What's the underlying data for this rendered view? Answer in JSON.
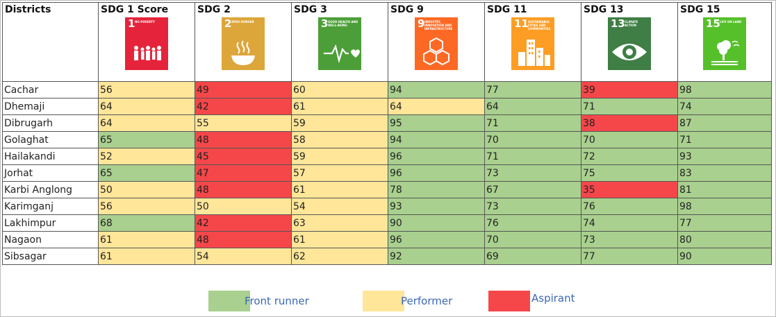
{
  "header": {
    "districts": "Districts",
    "sdg1": "SDG 1 Score",
    "sdg2": "SDG 2",
    "sdg3": "SDG 3",
    "sdg9": "SDG 9",
    "sdg11": "SDG 11",
    "sdg13": "SDG 13",
    "sdg15": "SDG 15"
  },
  "tiles": [
    {
      "num": "1",
      "label": "No poverty",
      "color": "#e5243b"
    },
    {
      "num": "2",
      "label": "Zero hunger",
      "color": "#dda63a"
    },
    {
      "num": "3",
      "label": "Good health and well-being",
      "color": "#4c9f38"
    },
    {
      "num": "9",
      "label": "Industry, innovation and infrastructure",
      "color": "#fd6925"
    },
    {
      "num": "11",
      "label": "Sustainable cities and communities",
      "color": "#fd9d24"
    },
    {
      "num": "13",
      "label": "Climate action",
      "color": "#3f7e44"
    },
    {
      "num": "15",
      "label": "Life on land",
      "color": "#56c02b"
    }
  ],
  "colors": {
    "front_runner": "#a9d08e",
    "performer": "#ffe699",
    "aspirant": "#f5474a"
  },
  "legend": {
    "front_runner": "Front runner",
    "performer": "Performer",
    "aspirant": "Aspirant"
  },
  "chart_data": {
    "type": "table",
    "columns": [
      "SDG 1 Score",
      "SDG 2",
      "SDG 3",
      "SDG 9",
      "SDG 11",
      "SDG 13",
      "SDG 15"
    ],
    "rows": [
      {
        "district": "Cachar",
        "values": [
          56,
          49,
          60,
          94,
          77,
          39,
          98
        ],
        "status": [
          "P",
          "A",
          "P",
          "F",
          "F",
          "A",
          "F"
        ]
      },
      {
        "district": "Dhemaji",
        "values": [
          64,
          42,
          61,
          64,
          64,
          71,
          74
        ],
        "status": [
          "P",
          "A",
          "P",
          "P",
          "F",
          "F",
          "F"
        ]
      },
      {
        "district": "Dibrugarh",
        "values": [
          64,
          55,
          59,
          95,
          71,
          38,
          87
        ],
        "status": [
          "P",
          "P",
          "P",
          "F",
          "F",
          "A",
          "F"
        ]
      },
      {
        "district": "Golaghat",
        "values": [
          65,
          48,
          58,
          94,
          70,
          70,
          71
        ],
        "status": [
          "F",
          "A",
          "P",
          "F",
          "F",
          "F",
          "F"
        ]
      },
      {
        "district": "Hailakandi",
        "values": [
          52,
          45,
          59,
          96,
          71,
          72,
          93
        ],
        "status": [
          "P",
          "A",
          "P",
          "F",
          "F",
          "F",
          "F"
        ]
      },
      {
        "district": "Jorhat",
        "values": [
          65,
          47,
          57,
          96,
          73,
          75,
          83
        ],
        "status": [
          "F",
          "A",
          "P",
          "F",
          "F",
          "F",
          "F"
        ]
      },
      {
        "district": "Karbi Anglong",
        "values": [
          50,
          48,
          61,
          78,
          67,
          35,
          81
        ],
        "status": [
          "P",
          "A",
          "P",
          "F",
          "F",
          "A",
          "F"
        ]
      },
      {
        "district": "Karimganj",
        "values": [
          56,
          50,
          54,
          93,
          73,
          76,
          98
        ],
        "status": [
          "P",
          "P",
          "P",
          "F",
          "F",
          "F",
          "F"
        ]
      },
      {
        "district": "Lakhimpur",
        "values": [
          68,
          42,
          63,
          90,
          76,
          74,
          77
        ],
        "status": [
          "F",
          "A",
          "P",
          "F",
          "F",
          "F",
          "F"
        ]
      },
      {
        "district": "Nagaon",
        "values": [
          61,
          48,
          61,
          96,
          70,
          73,
          80
        ],
        "status": [
          "P",
          "A",
          "P",
          "F",
          "F",
          "F",
          "F"
        ]
      },
      {
        "district": "Sibsagar",
        "values": [
          61,
          54,
          62,
          92,
          69,
          77,
          90
        ],
        "status": [
          "P",
          "P",
          "P",
          "F",
          "F",
          "F",
          "F"
        ]
      }
    ]
  }
}
